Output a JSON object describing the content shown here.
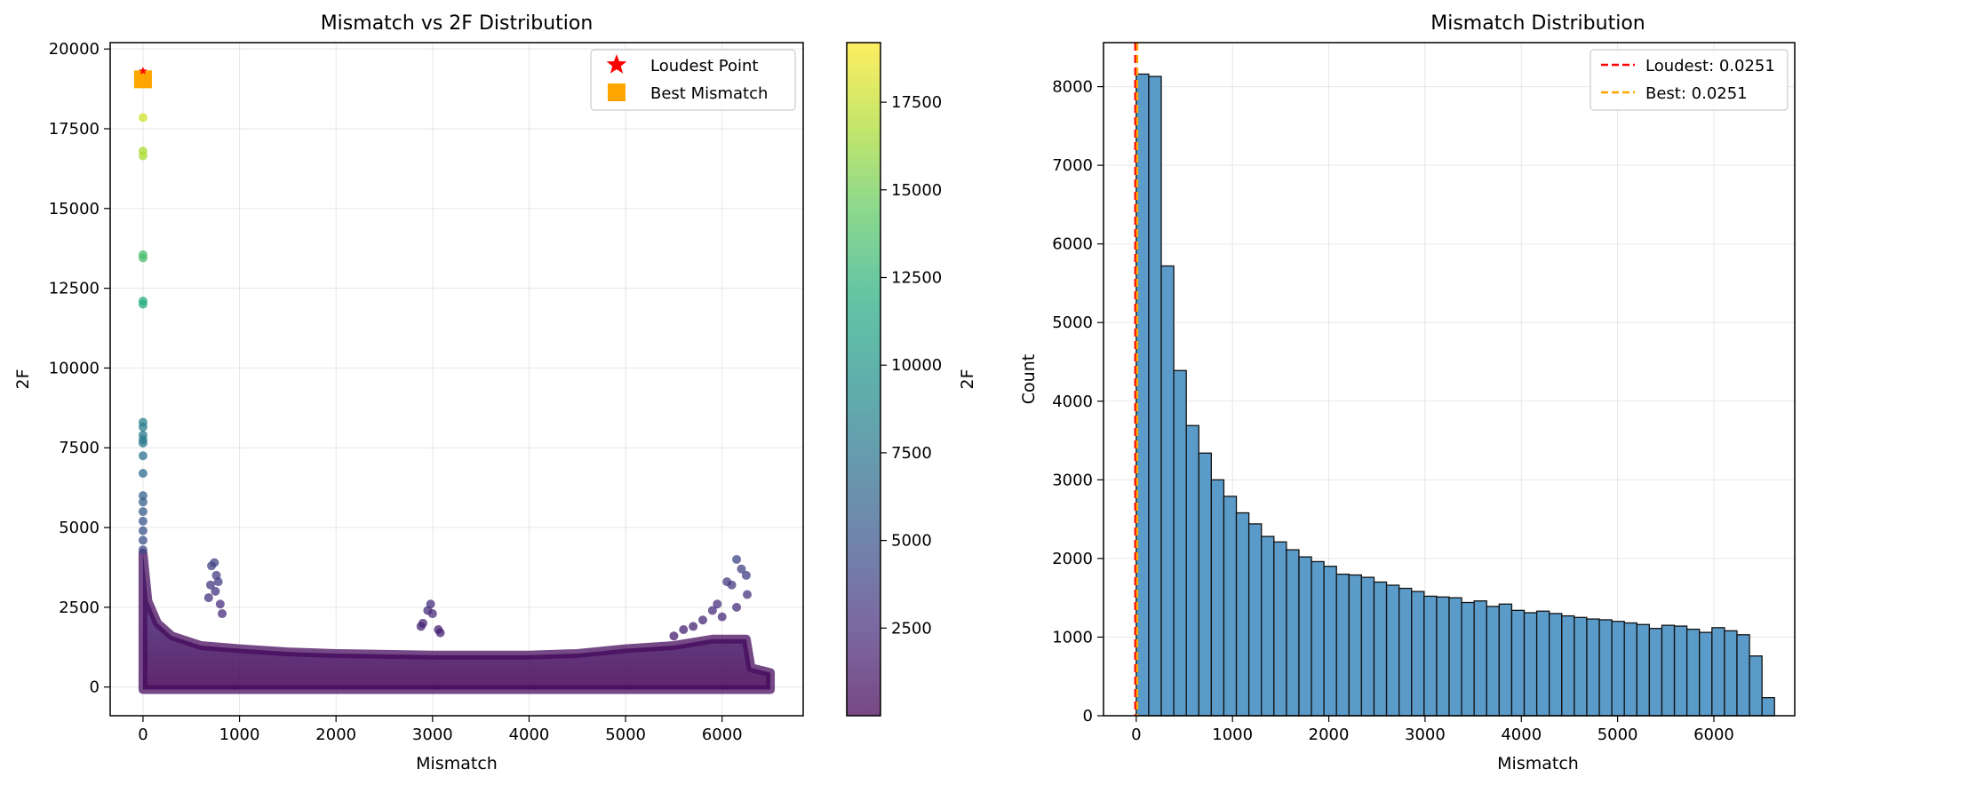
{
  "chart_data": [
    {
      "type": "scatter",
      "title": "Mismatch vs 2F Distribution",
      "xlabel": "Mismatch",
      "ylabel": "2F",
      "xlim": [
        -340,
        6840
      ],
      "ylim": [
        -900,
        20200
      ],
      "xticks": [
        0,
        1000,
        2000,
        3000,
        4000,
        5000,
        6000
      ],
      "yticks": [
        0,
        2500,
        5000,
        7500,
        10000,
        12500,
        15000,
        17500,
        20000
      ],
      "grid": true,
      "legend_position": "top-right",
      "legend": [
        {
          "label": "Loudest Point",
          "marker": "star",
          "color": "#ff0000"
        },
        {
          "label": "Best Mismatch",
          "marker": "square",
          "color": "#ffa500"
        }
      ],
      "colormap": "viridis",
      "colorbar": {
        "label": "2F",
        "range": [
          0,
          19200
        ],
        "ticks": [
          2500,
          5000,
          7500,
          10000,
          12500,
          15000,
          17500
        ]
      },
      "highlight_points": [
        {
          "name": "Loudest Point",
          "x": 0.0251,
          "y": 19200
        },
        {
          "name": "Best Mismatch",
          "x": 0.0251,
          "y": 19050
        }
      ],
      "outlier_points": [
        {
          "x": 0,
          "y": 17850
        },
        {
          "x": 0,
          "y": 16800
        },
        {
          "x": 0,
          "y": 16650
        },
        {
          "x": 0,
          "y": 13550
        },
        {
          "x": 0,
          "y": 13450
        },
        {
          "x": 0,
          "y": 12100
        },
        {
          "x": 0,
          "y": 12000
        },
        {
          "x": 0,
          "y": 8300
        },
        {
          "x": 0,
          "y": 8150
        },
        {
          "x": 0,
          "y": 7900
        },
        {
          "x": 0,
          "y": 7750
        },
        {
          "x": 0,
          "y": 7650
        },
        {
          "x": 0,
          "y": 7250
        },
        {
          "x": 0,
          "y": 6700
        },
        {
          "x": 0,
          "y": 6000
        },
        {
          "x": 0,
          "y": 5800
        },
        {
          "x": 0,
          "y": 5500
        },
        {
          "x": 0,
          "y": 5200
        },
        {
          "x": 0,
          "y": 4900
        },
        {
          "x": 0,
          "y": 4600
        },
        {
          "x": 0,
          "y": 4300
        },
        {
          "x": 710,
          "y": 3800
        },
        {
          "x": 740,
          "y": 3900
        },
        {
          "x": 760,
          "y": 3500
        },
        {
          "x": 780,
          "y": 3300
        },
        {
          "x": 700,
          "y": 3200
        },
        {
          "x": 800,
          "y": 2600
        },
        {
          "x": 820,
          "y": 2300
        },
        {
          "x": 680,
          "y": 2800
        },
        {
          "x": 750,
          "y": 3000
        },
        {
          "x": 2980,
          "y": 2600
        },
        {
          "x": 2950,
          "y": 2400
        },
        {
          "x": 3000,
          "y": 2300
        },
        {
          "x": 2900,
          "y": 2000
        },
        {
          "x": 3060,
          "y": 1800
        },
        {
          "x": 2880,
          "y": 1900
        },
        {
          "x": 3080,
          "y": 1700
        },
        {
          "x": 6150,
          "y": 4000
        },
        {
          "x": 6200,
          "y": 3700
        },
        {
          "x": 6250,
          "y": 3500
        },
        {
          "x": 6050,
          "y": 3300
        },
        {
          "x": 6100,
          "y": 3200
        },
        {
          "x": 6260,
          "y": 2900
        },
        {
          "x": 5950,
          "y": 2600
        },
        {
          "x": 5900,
          "y": 2400
        },
        {
          "x": 6000,
          "y": 2200
        },
        {
          "x": 5800,
          "y": 2100
        },
        {
          "x": 5700,
          "y": 1900
        },
        {
          "x": 5600,
          "y": 1800
        },
        {
          "x": 5500,
          "y": 1600
        },
        {
          "x": 6150,
          "y": 2500
        }
      ],
      "band_envelope": [
        {
          "x": 0,
          "y": 4200
        },
        {
          "x": 50,
          "y": 2700
        },
        {
          "x": 150,
          "y": 2000
        },
        {
          "x": 300,
          "y": 1600
        },
        {
          "x": 600,
          "y": 1300
        },
        {
          "x": 1000,
          "y": 1200
        },
        {
          "x": 1500,
          "y": 1100
        },
        {
          "x": 2000,
          "y": 1050
        },
        {
          "x": 3000,
          "y": 1000
        },
        {
          "x": 4000,
          "y": 1000
        },
        {
          "x": 4500,
          "y": 1050
        },
        {
          "x": 5000,
          "y": 1200
        },
        {
          "x": 5500,
          "y": 1300
        },
        {
          "x": 5900,
          "y": 1500
        },
        {
          "x": 6250,
          "y": 1500
        },
        {
          "x": 6300,
          "y": 600
        },
        {
          "x": 6500,
          "y": 450
        }
      ]
    },
    {
      "type": "bar",
      "title": "Mismatch Distribution",
      "xlabel": "Mismatch",
      "ylabel": "Count",
      "xlim": [
        -340,
        6840
      ],
      "ylim": [
        0,
        8560
      ],
      "xticks": [
        0,
        1000,
        2000,
        3000,
        4000,
        5000,
        6000
      ],
      "yticks": [
        0,
        1000,
        2000,
        3000,
        4000,
        5000,
        6000,
        7000,
        8000
      ],
      "grid": true,
      "legend_position": "top-right",
      "bin_start": 0,
      "bin_width": 130,
      "values": [
        8160,
        8130,
        5720,
        4390,
        3690,
        3340,
        3000,
        2790,
        2580,
        2440,
        2280,
        2210,
        2110,
        2020,
        1960,
        1900,
        1800,
        1790,
        1760,
        1700,
        1660,
        1620,
        1580,
        1520,
        1510,
        1500,
        1440,
        1460,
        1390,
        1420,
        1340,
        1310,
        1330,
        1300,
        1270,
        1250,
        1230,
        1220,
        1200,
        1180,
        1160,
        1110,
        1150,
        1140,
        1100,
        1060,
        1120,
        1080,
        1030,
        760,
        230
      ],
      "bar_color": "#5b9bc9",
      "vlines": [
        {
          "label": "Loudest: 0.0251",
          "x": 0.0251,
          "color": "#ff0000"
        },
        {
          "label": "Best: 0.0251",
          "x": 0.0251,
          "color": "#ffa500"
        }
      ]
    }
  ]
}
